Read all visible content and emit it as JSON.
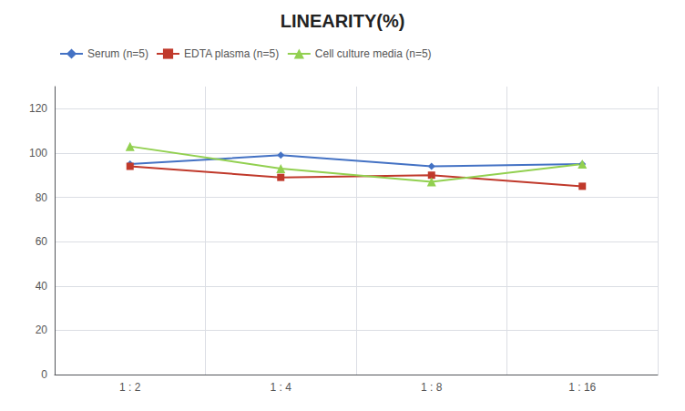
{
  "chart_data": {
    "type": "line",
    "title": "LINEARITY(%)",
    "categories": [
      "1 : 2",
      "1 : 4",
      "1 : 8",
      "1 : 16"
    ],
    "series": [
      {
        "name": "Serum (n=5)",
        "color": "#4472C4",
        "marker": "diamond",
        "values": [
          95,
          99,
          94,
          95
        ]
      },
      {
        "name": "EDTA plasma (n=5)",
        "color": "#C0392B",
        "marker": "square",
        "values": [
          94,
          89,
          90,
          85
        ]
      },
      {
        "name": "Cell culture media (n=5)",
        "color": "#92D050",
        "marker": "triangle",
        "values": [
          103,
          93,
          87,
          95
        ]
      }
    ],
    "ylim": [
      0,
      130
    ],
    "yticks": [
      0,
      20,
      40,
      60,
      80,
      100,
      120
    ],
    "grid": true,
    "legend": "top"
  }
}
